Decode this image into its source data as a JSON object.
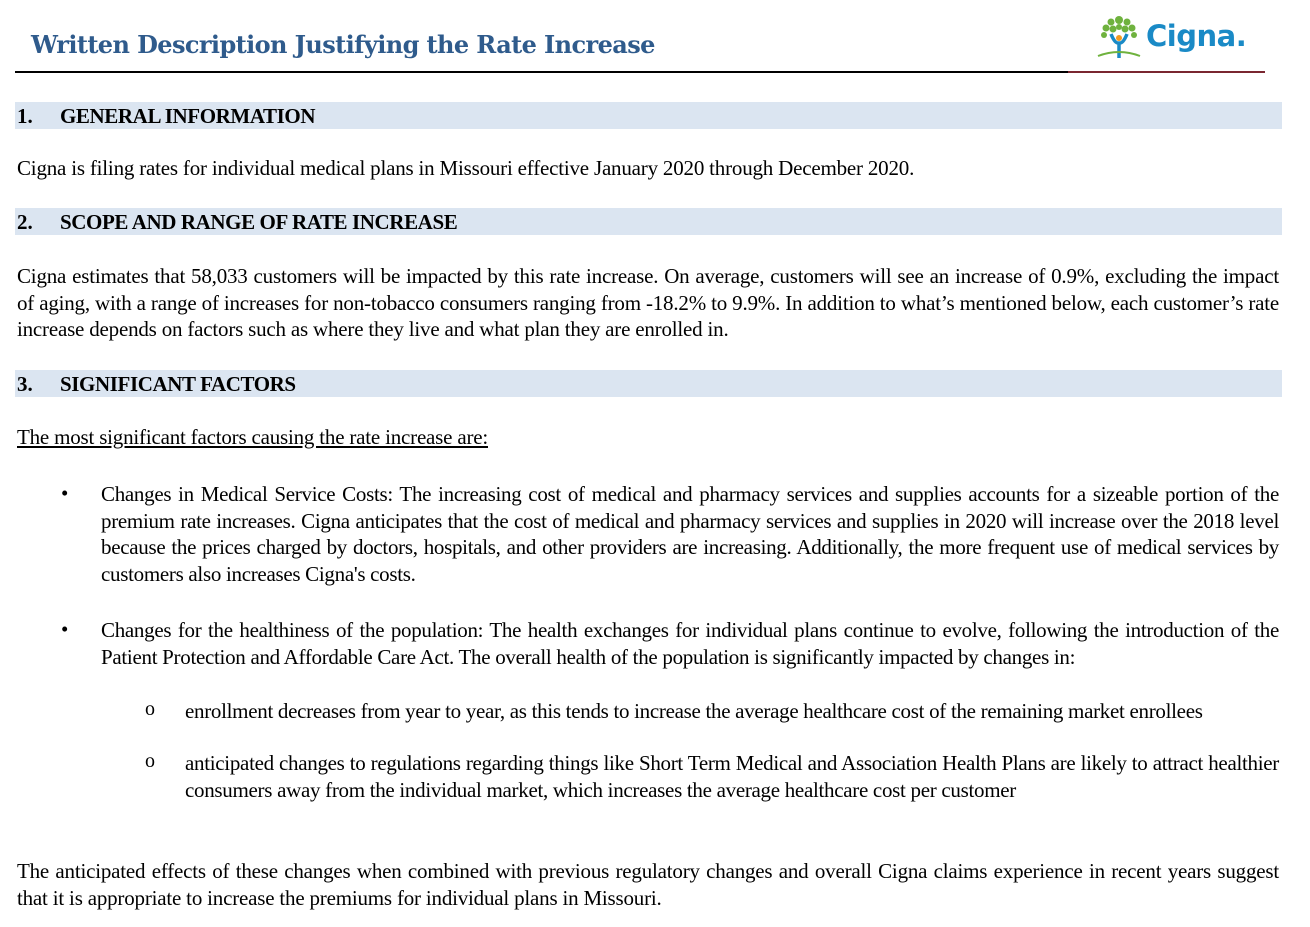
{
  "header": {
    "title": "Written Description Justifying the Rate Increase",
    "logo_text": "Cigna."
  },
  "sections": [
    {
      "number": "1.",
      "label": "GENERAL  INFORMATION"
    },
    {
      "number": "2.",
      "label": "SCOPE AND RANGE OF RATE INCREASE"
    },
    {
      "number": "3.",
      "label": "SIGNIFICANT  FACTORS"
    }
  ],
  "general_text": "Cigna is filing rates for individual medical plans in Missouri effective January 2020 through December 2020.",
  "scope_text": "Cigna estimates that 58,033 customers will be impacted by this rate increase.  On average, customers will see an increase of 0.9%, excluding the impact of aging, with a range of increases for non-tobacco consumers ranging from -18.2% to 9.9%. In addition to what’s mentioned below, each customer’s rate increase depends on factors such as where they live and what plan they are enrolled in.",
  "factors": {
    "intro": "The most significant factors causing the rate increase are:",
    "bullets": [
      "Changes in Medical Service Costs: The increasing cost of medical and pharmacy services and supplies accounts for a sizeable portion of the premium rate increases.  Cigna anticipates that the cost of medical and pharmacy services and supplies in 2020 will  increase over the 2018 level because the prices charged by doctors, hospitals, and other providers are increasing. Additionally, the more frequent use of medical services by customers also increases Cigna's costs.",
      "Changes for the healthiness of the population: The health exchanges for individual plans continue to evolve, following the introduction of the Patient Protection and Affordable Care Act. The overall health of the population is significantly impacted by changes in:"
    ],
    "sub_bullets": [
      "enrollment decreases from year to year, as this tends to increase the average healthcare cost of the remaining market enrollees",
      "anticipated changes to regulations regarding things like Short Term Medical and Association Health Plans are likely to attract healthier consumers away from the individual market, which increases the average healthcare cost per customer"
    ],
    "conclusion": "The anticipated effects of these changes when combined with previous regulatory changes and overall Cigna claims experience in recent years suggest that it is appropriate to increase the premiums for individual plans in Missouri."
  }
}
